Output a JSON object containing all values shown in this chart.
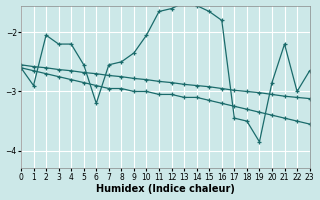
{
  "xlabel": "Humidex (Indice chaleur)",
  "bg_color": "#cce8e8",
  "line_color": "#1a6b6b",
  "grid_color": "#ffffff",
  "xlim": [
    0,
    23
  ],
  "ylim": [
    -4.3,
    -1.55
  ],
  "yticks": [
    -4,
    -3,
    -2
  ],
  "xticks": [
    0,
    1,
    2,
    3,
    4,
    5,
    6,
    7,
    8,
    9,
    10,
    11,
    12,
    13,
    14,
    15,
    16,
    17,
    18,
    19,
    20,
    21,
    22,
    23
  ],
  "series": [
    {
      "x": [
        0,
        1,
        2,
        3,
        4,
        5,
        6,
        7,
        8,
        9,
        10,
        11,
        12,
        13,
        14,
        15,
        16,
        17,
        18,
        19,
        20,
        21,
        22,
        23
      ],
      "y": [
        -2.6,
        -2.65,
        -2.7,
        -2.75,
        -2.8,
        -2.85,
        -2.9,
        -2.95,
        -2.95,
        -3.0,
        -3.0,
        -3.05,
        -3.05,
        -3.1,
        -3.1,
        -3.15,
        -3.2,
        -3.25,
        -3.3,
        -3.35,
        -3.4,
        -3.45,
        -3.5,
        -3.55
      ]
    },
    {
      "x": [
        0,
        1,
        2,
        3,
        4,
        5,
        6,
        7,
        8,
        9,
        10,
        11,
        12,
        13,
        14,
        15,
        16,
        17,
        18,
        19,
        20,
        21,
        22,
        23
      ],
      "y": [
        -2.55,
        -2.58,
        -2.6,
        -2.63,
        -2.65,
        -2.68,
        -2.7,
        -2.73,
        -2.75,
        -2.78,
        -2.8,
        -2.83,
        -2.85,
        -2.88,
        -2.9,
        -2.92,
        -2.95,
        -2.98,
        -3.0,
        -3.02,
        -3.05,
        -3.08,
        -3.1,
        -3.12
      ]
    },
    {
      "x": [
        0,
        1,
        2,
        3,
        4,
        5,
        6,
        7,
        8,
        9,
        10,
        11,
        12,
        13,
        14,
        15,
        16,
        17,
        18,
        19,
        20,
        21,
        22,
        23
      ],
      "y": [
        -2.6,
        -2.9,
        -2.05,
        -2.2,
        -2.2,
        -2.55,
        -3.2,
        -2.55,
        -2.5,
        -2.35,
        -2.05,
        -1.65,
        -1.6,
        -1.5,
        -1.55,
        -1.65,
        -1.8,
        -3.45,
        -3.5,
        -3.85,
        -2.85,
        -2.2,
        -3.0,
        -2.65
      ]
    }
  ]
}
